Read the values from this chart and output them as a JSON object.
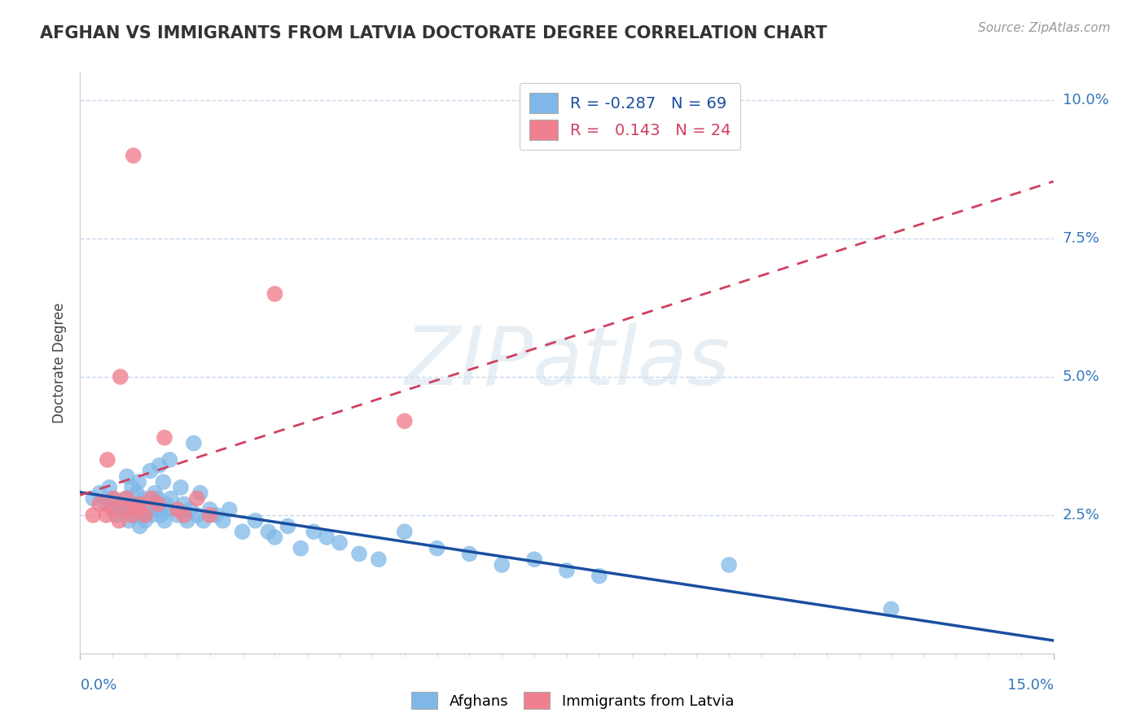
{
  "title": "AFGHAN VS IMMIGRANTS FROM LATVIA DOCTORATE DEGREE CORRELATION CHART",
  "source": "Source: ZipAtlas.com",
  "ylabel": "Doctorate Degree",
  "xlim": [
    0.0,
    15.0
  ],
  "ylim": [
    0.0,
    10.5
  ],
  "yticks": [
    0.0,
    2.5,
    5.0,
    7.5,
    10.0
  ],
  "ytick_labels": [
    "",
    "2.5%",
    "5.0%",
    "7.5%",
    "10.0%"
  ],
  "xtick_labels": [
    "0.0%",
    "15.0%"
  ],
  "legend_r_blue": "-0.287",
  "legend_n_blue": "69",
  "legend_r_pink": " 0.143",
  "legend_n_pink": "24",
  "blue_color": "#7fb8e8",
  "pink_color": "#f08090",
  "trendline_blue": "#1a4fa0",
  "trendline_pink": "#d04060",
  "background_color": "#ffffff",
  "grid_color": "#c8d8ea",
  "blue_x": [
    0.2,
    0.3,
    0.4,
    0.45,
    0.5,
    0.55,
    0.6,
    0.65,
    0.7,
    0.72,
    0.75,
    0.78,
    0.8,
    0.82,
    0.85,
    0.87,
    0.9,
    0.92,
    0.95,
    0.98,
    1.0,
    1.05,
    1.08,
    1.1,
    1.12,
    1.15,
    1.18,
    1.2,
    1.22,
    1.25,
    1.28,
    1.3,
    1.32,
    1.35,
    1.38,
    1.4,
    1.5,
    1.55,
    1.6,
    1.65,
    1.7,
    1.75,
    1.8,
    1.85,
    1.9,
    2.0,
    2.1,
    2.2,
    2.3,
    2.5,
    2.7,
    2.9,
    3.0,
    3.2,
    3.4,
    3.6,
    3.8,
    4.0,
    4.3,
    4.6,
    5.0,
    5.5,
    6.0,
    6.5,
    7.0,
    7.5,
    8.0,
    10.0,
    12.5
  ],
  "blue_y": [
    2.8,
    2.9,
    2.7,
    3.0,
    2.8,
    2.5,
    2.7,
    2.6,
    2.8,
    3.2,
    2.4,
    2.6,
    3.0,
    2.5,
    2.7,
    2.9,
    3.1,
    2.3,
    2.5,
    2.8,
    2.4,
    2.6,
    3.3,
    2.5,
    2.7,
    2.9,
    2.6,
    2.8,
    3.4,
    2.5,
    3.1,
    2.4,
    2.7,
    2.6,
    3.5,
    2.8,
    2.5,
    3.0,
    2.7,
    2.4,
    2.6,
    3.8,
    2.5,
    2.9,
    2.4,
    2.6,
    2.5,
    2.4,
    2.6,
    2.2,
    2.4,
    2.2,
    2.1,
    2.3,
    1.9,
    2.2,
    2.1,
    2.0,
    1.8,
    1.7,
    2.2,
    1.9,
    1.8,
    1.6,
    1.7,
    1.5,
    1.4,
    1.6,
    0.8
  ],
  "pink_x": [
    0.2,
    0.3,
    0.4,
    0.42,
    0.5,
    0.52,
    0.6,
    0.62,
    0.7,
    0.72,
    0.8,
    0.82,
    0.9,
    0.92,
    1.0,
    1.1,
    1.2,
    1.3,
    1.5,
    1.6,
    1.8,
    2.0,
    3.0,
    5.0
  ],
  "pink_y": [
    2.5,
    2.7,
    2.5,
    3.5,
    2.6,
    2.8,
    2.4,
    5.0,
    2.6,
    2.8,
    2.5,
    9.0,
    2.6,
    2.7,
    2.5,
    2.8,
    2.7,
    3.9,
    2.6,
    2.5,
    2.8,
    2.5,
    6.5,
    4.2
  ]
}
